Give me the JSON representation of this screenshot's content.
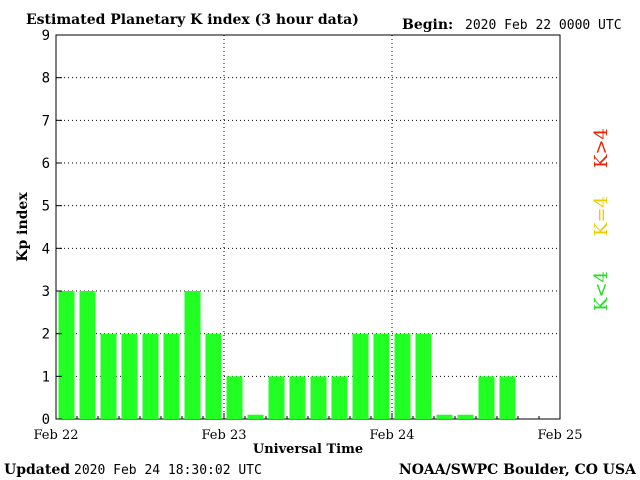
{
  "header": {
    "title": "Estimated Planetary K index (3 hour data)",
    "begin_label": "Begin:",
    "begin_value": "2020 Feb 22 0000 UTC"
  },
  "footer": {
    "updated_label": "Updated",
    "updated_value": "2020 Feb 24 18:30:02 UTC",
    "source": "NOAA/SWPC Boulder, CO USA"
  },
  "legend": [
    {
      "label": "K<4",
      "color": "#22dd22"
    },
    {
      "label": "K=4",
      "color": "#eecc00"
    },
    {
      "label": "K>4",
      "color": "#ee2200"
    }
  ],
  "chart_data": {
    "type": "bar",
    "title": "Estimated Planetary K index (3 hour data)",
    "xlabel": "Universal Time",
    "ylabel": "Kp index",
    "ylim": [
      0,
      9
    ],
    "yticks": [
      0,
      1,
      2,
      3,
      4,
      5,
      6,
      7,
      8,
      9
    ],
    "xticks": [
      "Feb 22",
      "Feb 23",
      "Feb 24",
      "Feb 25"
    ],
    "bars_per_day": 8,
    "days": 3,
    "grid": true,
    "legend_position": "right",
    "bar_color": "#22ff22",
    "values": [
      3,
      3,
      2,
      2,
      2,
      2,
      3,
      2,
      1,
      0.1,
      1,
      1,
      1,
      1,
      2,
      2,
      2,
      2,
      0.1,
      0.1,
      1,
      1
    ]
  }
}
